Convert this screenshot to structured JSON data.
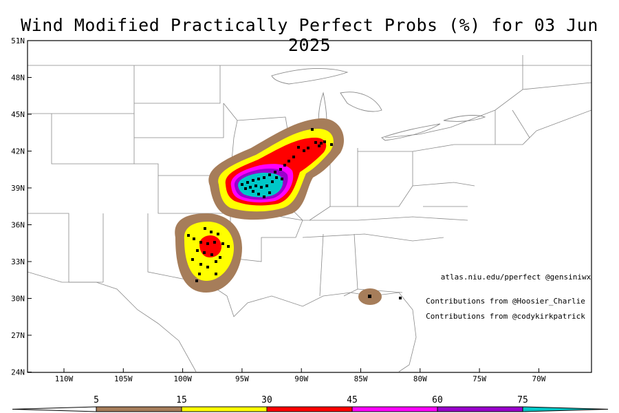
{
  "title": "Wind Modified Practically Perfect Probs (%) for 03 Jun 2025",
  "lat_labels": [
    "51N",
    "48N",
    "45N",
    "42N",
    "39N",
    "36N",
    "33N",
    "30N",
    "27N",
    "24N"
  ],
  "lon_labels": [
    "110W",
    "105W",
    "100W",
    "95W",
    "90W",
    "85W",
    "80W",
    "75W",
    "70W"
  ],
  "credits": {
    "site": "atlas.niu.edu/pperfect @gensiniwx",
    "contrib1": "Contributions from @Hoosier_Charlie",
    "contrib2": "Contributions from @codykirkpatrick"
  },
  "colorbar": {
    "labels": [
      "5",
      "15",
      "30",
      "45",
      "60",
      "75"
    ],
    "colors": [
      "#a67d5a",
      "#ffff00",
      "#ff0000",
      "#ff00ff",
      "#9900cc",
      "#00c8c8"
    ]
  }
}
